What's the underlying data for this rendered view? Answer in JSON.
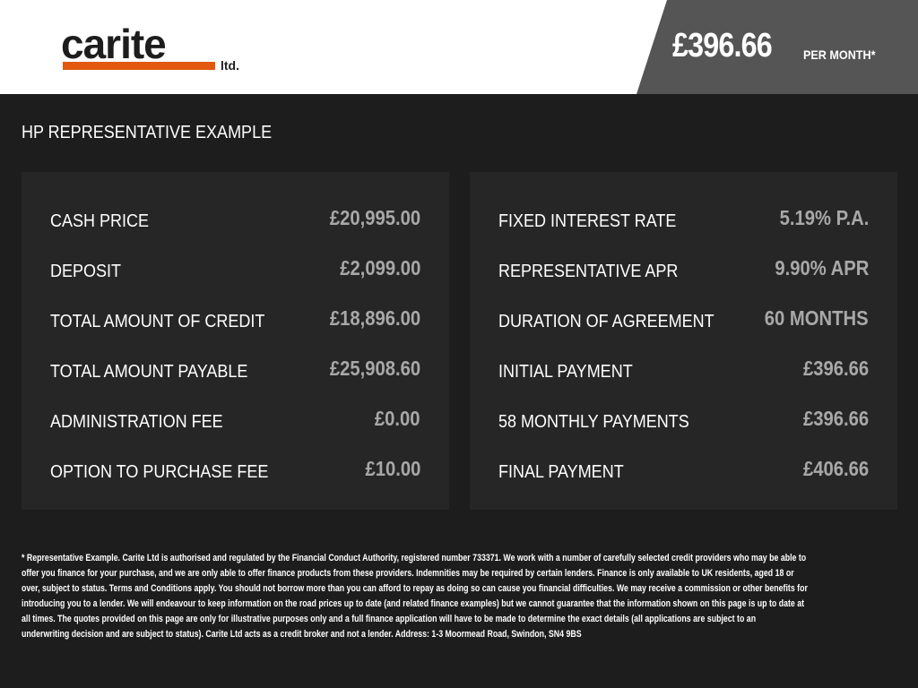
{
  "header": {
    "logo_text": "carite",
    "logo_suffix": "ltd.",
    "price": "£396.66",
    "price_suffix": "PER MONTH*",
    "colors": {
      "logo_bar": "#e2580f",
      "price_panel": "#555555"
    }
  },
  "title": "HP REPRESENTATIVE EXAMPLE",
  "left_rows": [
    {
      "label": "CASH PRICE",
      "value": "£20,995.00"
    },
    {
      "label": "DEPOSIT",
      "value": "£2,099.00"
    },
    {
      "label": "TOTAL AMOUNT OF CREDIT",
      "value": "£18,896.00"
    },
    {
      "label": "TOTAL AMOUNT PAYABLE",
      "value": "£25,908.60"
    },
    {
      "label": "ADMINISTRATION FEE",
      "value": "£0.00"
    },
    {
      "label": "OPTION TO PURCHASE FEE",
      "value": "£10.00"
    }
  ],
  "right_rows": [
    {
      "label": "FIXED INTEREST RATE",
      "value": "5.19% P.A."
    },
    {
      "label": "REPRESENTATIVE APR",
      "value": "9.90% APR"
    },
    {
      "label": "DURATION OF AGREEMENT",
      "value": "60 MONTHS"
    },
    {
      "label": "INITIAL PAYMENT",
      "value": "£396.66"
    },
    {
      "label": "58 MONTHLY PAYMENTS",
      "value": "£396.66"
    },
    {
      "label": "FINAL PAYMENT",
      "value": "£406.66"
    }
  ],
  "disclaimer_lines": [
    "* Representative Example. Carite Ltd is authorised and regulated by the Financial Conduct Authority, registered number 733371. We work with a number of carefully selected credit providers who may be able to",
    "offer you finance for your purchase, and we are only able to offer finance products from these providers. Indemnities may be required by certain lenders. Finance is only available to UK residents, aged 18 or",
    "over, subject to status. Terms and Conditions apply. You should not borrow more than you can afford to repay as doing so can cause you financial difficulties. We may receive a commission or other benefits for",
    "introducing you to a lender. We will endeavour to keep information on the road prices up to date (and related finance examples) but we cannot guarantee that the information shown on this page is up to date at",
    "all times. The quotes provided on this page are only for illustrative purposes only and a full finance application will have to be made to determine the exact details (all applications are subject to an",
    "underwriting decision and are subject to status). Carite Ltd acts as a credit broker and not a lender. Address: 1-3 Moormead Road, Swindon, SN4 9BS"
  ]
}
